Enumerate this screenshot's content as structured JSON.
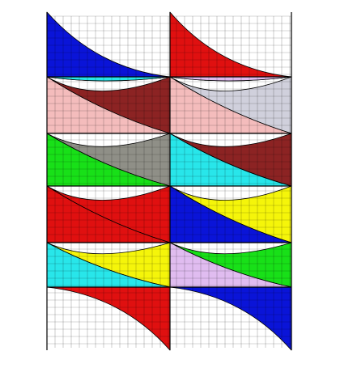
{
  "figure": {
    "palette": {
      "blue": "#0a14d8",
      "red": "#e01010",
      "yellow": "#f5f50a",
      "cyan": "#28e6ea",
      "brown": "#8c2323",
      "pink": "#f4bcbc",
      "gray": "#8f8f87",
      "green": "#18e018",
      "lavender": "#e0bcf0",
      "lightgray": "#d0d0dc"
    },
    "columns": [
      {
        "name": "left-column",
        "bands": [
          "blue",
          "blue",
          "yellow",
          "cyan",
          "brown",
          "pink",
          "gray",
          "green",
          "red",
          "red"
        ]
      },
      {
        "name": "right-column",
        "bands": [
          "red",
          "red",
          "green",
          "lavender",
          "lightgray",
          "pink",
          "brown",
          "cyan",
          "yellow",
          "blue"
        ]
      }
    ]
  }
}
